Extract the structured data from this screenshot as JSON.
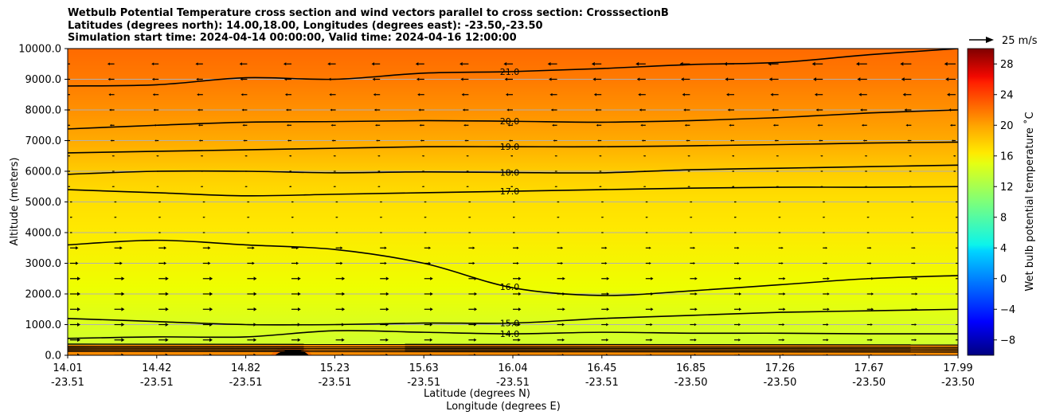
{
  "chart_data": {
    "type": "heatmap",
    "title": [
      "Wetbulb Potential Temperature cross section and wind vectors parallel to cross section: CrosssectionB",
      "Latitudes (degrees north): 14.00,18.00, Longitudes (degrees east): -23.50,-23.50",
      "Simulation start time: 2024-04-14 00:00:00, Valid time: 2024-04-16 12:00:00"
    ],
    "xlabel_lat": "Latitude (degrees N)",
    "xlabel_lon": "Longitude (degrees E)",
    "ylabel": "Altitude (meters)",
    "ylim": [
      0,
      10000
    ],
    "yticks": [
      "0.0",
      "1000.0",
      "2000.0",
      "3000.0",
      "4000.0",
      "5000.0",
      "6000.0",
      "7000.0",
      "8000.0",
      "9000.0",
      "10000.0"
    ],
    "xticks": [
      {
        "lat": "14.01",
        "lon": "-23.51"
      },
      {
        "lat": "14.42",
        "lon": "-23.51"
      },
      {
        "lat": "14.82",
        "lon": "-23.51"
      },
      {
        "lat": "15.23",
        "lon": "-23.51"
      },
      {
        "lat": "15.63",
        "lon": "-23.51"
      },
      {
        "lat": "16.04",
        "lon": "-23.51"
      },
      {
        "lat": "16.45",
        "lon": "-23.51"
      },
      {
        "lat": "16.85",
        "lon": "-23.50"
      },
      {
        "lat": "17.26",
        "lon": "-23.50"
      },
      {
        "lat": "17.67",
        "lon": "-23.50"
      },
      {
        "lat": "17.99",
        "lon": "-23.50"
      }
    ],
    "grid": "horizontal",
    "colorbar": {
      "label": "Wet bulb potential temperature ˚C",
      "range": [
        -10,
        30
      ],
      "ticks": [
        "−8",
        "−4",
        "0",
        "4",
        "8",
        "12",
        "16",
        "20",
        "24",
        "28"
      ],
      "colormap": "jet"
    },
    "wind_reference": "25 m/s",
    "contours": [
      {
        "level": "21.0",
        "alt": [
          8780,
          8820,
          9050,
          9000,
          9200,
          9250,
          9350,
          9480,
          9550,
          9800,
          10000
        ]
      },
      {
        "level": "20.0",
        "alt": [
          7380,
          7500,
          7600,
          7620,
          7650,
          7630,
          7600,
          7650,
          7750,
          7900,
          8000
        ]
      },
      {
        "level": "19.0",
        "alt": [
          6600,
          6650,
          6700,
          6750,
          6800,
          6800,
          6800,
          6830,
          6870,
          6920,
          6950
        ]
      },
      {
        "level": "18.0",
        "alt": [
          5900,
          6000,
          6000,
          5950,
          5980,
          5960,
          5950,
          6050,
          6100,
          6150,
          6200
        ]
      },
      {
        "level": "17.0",
        "alt": [
          5400,
          5300,
          5200,
          5250,
          5300,
          5350,
          5400,
          5450,
          5480,
          5480,
          5500
        ]
      },
      {
        "level": "16.0",
        "alt": [
          3600,
          3750,
          3600,
          3450,
          3000,
          2200,
          1950,
          2100,
          2300,
          2500,
          2600
        ]
      },
      {
        "level": "15.0",
        "alt": [
          1200,
          1100,
          1000,
          1000,
          1050,
          1050,
          1200,
          1300,
          1400,
          1450,
          1500
        ]
      },
      {
        "level": "14.0",
        "alt": [
          550,
          600,
          600,
          800,
          750,
          700,
          750,
          720,
          720,
          700,
          700
        ]
      }
    ]
  }
}
